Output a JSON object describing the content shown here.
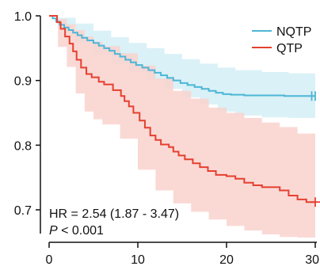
{
  "chart_data": {
    "type": "line",
    "subtype": "kaplan-meier survival",
    "title": "",
    "xlabel": "",
    "ylabel": "",
    "xlim": [
      0,
      30
    ],
    "ylim": [
      0.66,
      1.0
    ],
    "xticks": [
      0,
      10,
      20,
      30
    ],
    "yticks": [
      0.7,
      0.8,
      0.9,
      1.0
    ],
    "x_tick_labels": [
      "0",
      "10",
      "20",
      "30"
    ],
    "y_tick_labels": [
      "0.7",
      "0.8",
      "0.9",
      "1.0"
    ],
    "grid": false,
    "legend_position": "top-right",
    "legend_marker": "line",
    "series": [
      {
        "name": "NQTP",
        "color": "#4DB6D6",
        "band_color": "#D4EEF6",
        "steps": [
          [
            0,
            1.0
          ],
          [
            0.4,
            0.996
          ],
          [
            0.8,
            0.991
          ],
          [
            1.2,
            0.986
          ],
          [
            1.7,
            0.982
          ],
          [
            2.2,
            0.978
          ],
          [
            2.7,
            0.974
          ],
          [
            3.2,
            0.97
          ],
          [
            3.7,
            0.966
          ],
          [
            4.3,
            0.962
          ],
          [
            5.0,
            0.958
          ],
          [
            5.6,
            0.954
          ],
          [
            6.2,
            0.95
          ],
          [
            6.8,
            0.946
          ],
          [
            7.4,
            0.941
          ],
          [
            8.0,
            0.937
          ],
          [
            8.6,
            0.932
          ],
          [
            9.2,
            0.928
          ],
          [
            9.8,
            0.924
          ],
          [
            10.5,
            0.92
          ],
          [
            11.2,
            0.916
          ],
          [
            11.9,
            0.912
          ],
          [
            12.6,
            0.908
          ],
          [
            13.3,
            0.904
          ],
          [
            14.0,
            0.9
          ],
          [
            14.8,
            0.896
          ],
          [
            15.6,
            0.893
          ],
          [
            16.4,
            0.89
          ],
          [
            17.2,
            0.887
          ],
          [
            18.0,
            0.884
          ],
          [
            18.8,
            0.881
          ],
          [
            19.6,
            0.879
          ],
          [
            20.5,
            0.878
          ],
          [
            22.0,
            0.877
          ],
          [
            24.0,
            0.877
          ],
          [
            26.5,
            0.876
          ],
          [
            30.0,
            0.876
          ]
        ],
        "upper": [
          [
            0,
            1.0
          ],
          [
            1,
            0.997
          ],
          [
            3,
            0.988
          ],
          [
            5,
            0.977
          ],
          [
            7,
            0.967
          ],
          [
            9,
            0.958
          ],
          [
            11,
            0.95
          ],
          [
            13,
            0.941
          ],
          [
            15,
            0.933
          ],
          [
            17,
            0.926
          ],
          [
            19,
            0.92
          ],
          [
            21,
            0.916
          ],
          [
            24,
            0.913
          ],
          [
            27,
            0.911
          ],
          [
            30,
            0.91
          ]
        ],
        "lower": [
          [
            0,
            1.0
          ],
          [
            1,
            0.986
          ],
          [
            3,
            0.958
          ],
          [
            5,
            0.94
          ],
          [
            7,
            0.925
          ],
          [
            9,
            0.912
          ],
          [
            11,
            0.9
          ],
          [
            13,
            0.887
          ],
          [
            15,
            0.874
          ],
          [
            17,
            0.863
          ],
          [
            19,
            0.852
          ],
          [
            21,
            0.846
          ],
          [
            24,
            0.843
          ],
          [
            27,
            0.842
          ],
          [
            30,
            0.841
          ]
        ],
        "censor": [
          [
            29.6,
            0.876
          ],
          [
            30.0,
            0.876
          ]
        ]
      },
      {
        "name": "QTP",
        "color": "#E5402F",
        "band_color": "#F9D2CE",
        "steps": [
          [
            0,
            1.0
          ],
          [
            0.9,
            0.99
          ],
          [
            1.3,
            0.98
          ],
          [
            1.8,
            0.968
          ],
          [
            2.3,
            0.957
          ],
          [
            2.7,
            0.945
          ],
          [
            3.1,
            0.932
          ],
          [
            3.6,
            0.92
          ],
          [
            4.2,
            0.91
          ],
          [
            4.8,
            0.905
          ],
          [
            5.6,
            0.898
          ],
          [
            6.2,
            0.894
          ],
          [
            7.2,
            0.885
          ],
          [
            8.1,
            0.876
          ],
          [
            8.5,
            0.868
          ],
          [
            9.0,
            0.86
          ],
          [
            9.5,
            0.85
          ],
          [
            10.2,
            0.838
          ],
          [
            10.8,
            0.827
          ],
          [
            11.4,
            0.815
          ],
          [
            12.0,
            0.808
          ],
          [
            12.6,
            0.801
          ],
          [
            13.5,
            0.797
          ],
          [
            14.0,
            0.79
          ],
          [
            14.6,
            0.784
          ],
          [
            15.3,
            0.778
          ],
          [
            16.2,
            0.772
          ],
          [
            17.0,
            0.766
          ],
          [
            17.9,
            0.76
          ],
          [
            18.8,
            0.754
          ],
          [
            20.0,
            0.752
          ],
          [
            21.0,
            0.748
          ],
          [
            22.0,
            0.742
          ],
          [
            23.0,
            0.738
          ],
          [
            24.0,
            0.735
          ],
          [
            26.0,
            0.73
          ],
          [
            27.0,
            0.722
          ],
          [
            28.0,
            0.716
          ],
          [
            29.0,
            0.712
          ],
          [
            30.0,
            0.712
          ]
        ],
        "upper": [
          [
            0,
            1.0
          ],
          [
            1,
            0.995
          ],
          [
            2,
            0.987
          ],
          [
            3,
            0.978
          ],
          [
            4,
            0.968
          ],
          [
            5,
            0.96
          ],
          [
            6,
            0.953
          ],
          [
            8,
            0.942
          ],
          [
            10,
            0.923
          ],
          [
            12,
            0.903
          ],
          [
            14,
            0.884
          ],
          [
            16,
            0.872
          ],
          [
            18,
            0.858
          ],
          [
            20,
            0.85
          ],
          [
            22,
            0.842
          ],
          [
            24,
            0.835
          ],
          [
            26,
            0.828
          ],
          [
            28,
            0.818
          ],
          [
            30,
            0.815
          ]
        ],
        "lower": [
          [
            0,
            1.0
          ],
          [
            1,
            0.952
          ],
          [
            2,
            0.921
          ],
          [
            3,
            0.88
          ],
          [
            4,
            0.852
          ],
          [
            5,
            0.84
          ],
          [
            6,
            0.832
          ],
          [
            8,
            0.81
          ],
          [
            10,
            0.762
          ],
          [
            12,
            0.73
          ],
          [
            14,
            0.71
          ],
          [
            16,
            0.697
          ],
          [
            18,
            0.685
          ],
          [
            20,
            0.675
          ],
          [
            22,
            0.668
          ],
          [
            24,
            0.662
          ],
          [
            26,
            0.658
          ],
          [
            28,
            0.648
          ],
          [
            30,
            0.64
          ]
        ],
        "censor": [
          [
            30.0,
            0.712
          ]
        ]
      }
    ],
    "annotations": {
      "hr_line": "HR = 2.54 (1.87 -  3.47)",
      "p_symbol": "P",
      "p_rest": " < 0.001"
    }
  }
}
